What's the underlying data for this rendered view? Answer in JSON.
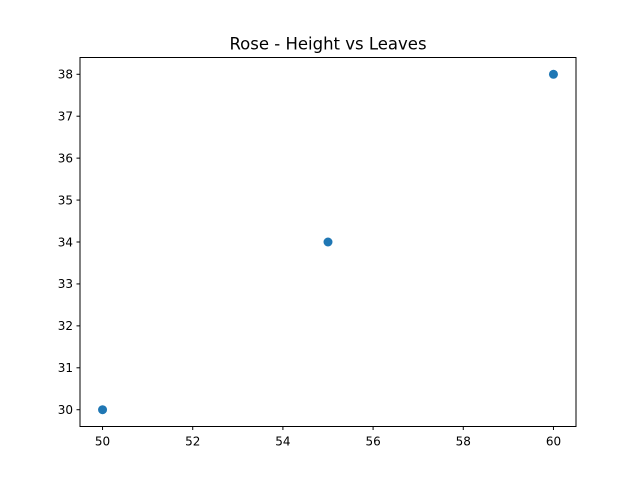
{
  "chart_data": {
    "type": "scatter",
    "title": "Rose - Height vs Leaves",
    "xlabel": "",
    "ylabel": "",
    "xlim": [
      49.5,
      60.5
    ],
    "ylim": [
      29.6,
      38.4
    ],
    "xticks": [
      50,
      52,
      54,
      56,
      58,
      60
    ],
    "yticks": [
      30,
      31,
      32,
      33,
      34,
      35,
      36,
      37,
      38
    ],
    "grid": false,
    "legend": "none",
    "series": [
      {
        "color": "#1f77b4",
        "points": [
          {
            "x": 50,
            "y": 30
          },
          {
            "x": 55,
            "y": 34
          },
          {
            "x": 60,
            "y": 38
          }
        ]
      }
    ]
  }
}
